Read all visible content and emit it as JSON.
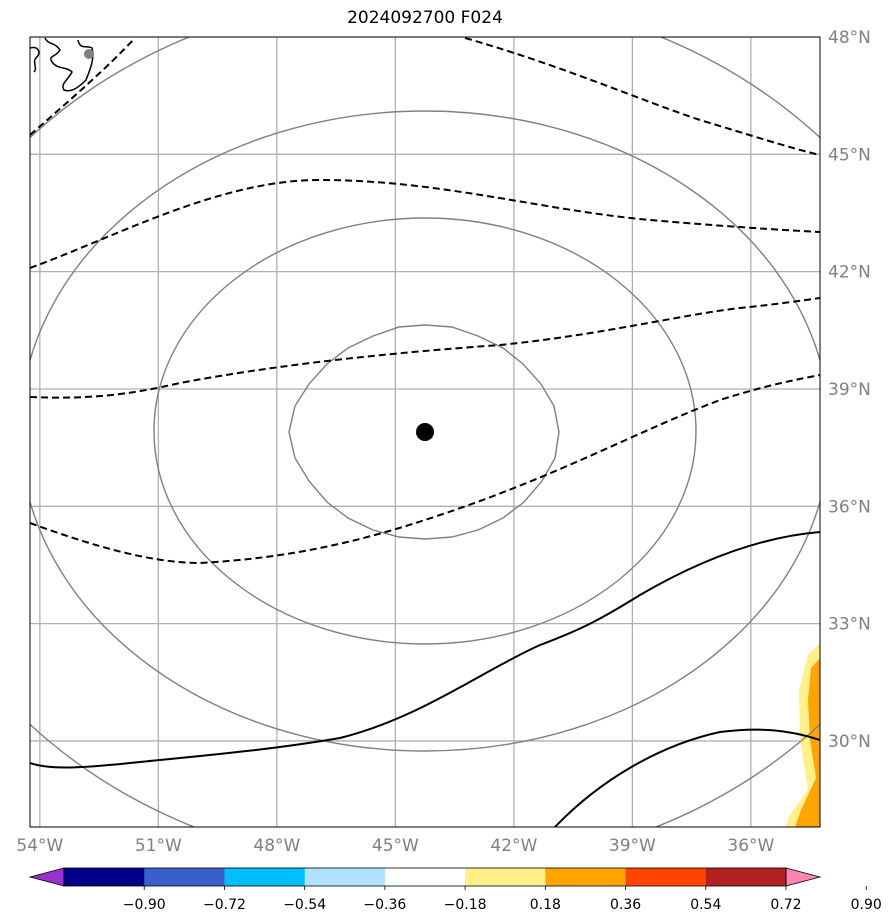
{
  "title": "2024092700 F024",
  "map": {
    "lon_range": [
      -54.25,
      -34.25
    ],
    "lat_range": [
      27.8,
      48.0
    ],
    "lon_ticks": [
      {
        "value": -54,
        "label": "54°W"
      },
      {
        "value": -51,
        "label": "51°W"
      },
      {
        "value": -48,
        "label": "48°W"
      },
      {
        "value": -45,
        "label": "45°W"
      },
      {
        "value": -42,
        "label": "42°W"
      },
      {
        "value": -39,
        "label": "39°W"
      },
      {
        "value": -36,
        "label": "36°W"
      }
    ],
    "lat_ticks": [
      {
        "value": 30,
        "label": "30°N"
      },
      {
        "value": 33,
        "label": "33°N"
      },
      {
        "value": 36,
        "label": "36°N"
      },
      {
        "value": 39,
        "label": "39°N"
      },
      {
        "value": 42,
        "label": "42°N"
      },
      {
        "value": 45,
        "label": "45°N"
      },
      {
        "value": 48,
        "label": "48°N"
      }
    ],
    "center_marker": {
      "lon": -44.3,
      "lat": 38.0
    },
    "grid_color": "#b0b0b0",
    "tick_label_color": "#808080",
    "gray_contour_color": "#808080"
  },
  "colorbar": {
    "labels": [
      "−0.90",
      "−0.72",
      "−0.54",
      "−0.36",
      "−0.18",
      "0.18",
      "0.36",
      "0.54",
      "0.72",
      "0.90"
    ],
    "colors": [
      "#9932cc",
      "#00008b",
      "#3a5fcd",
      "#00bfff",
      "#b0e2ff",
      "#ffffff",
      "#fff08c",
      "#ffa500",
      "#ff4500",
      "#b22222",
      "#ff85b0"
    ]
  }
}
